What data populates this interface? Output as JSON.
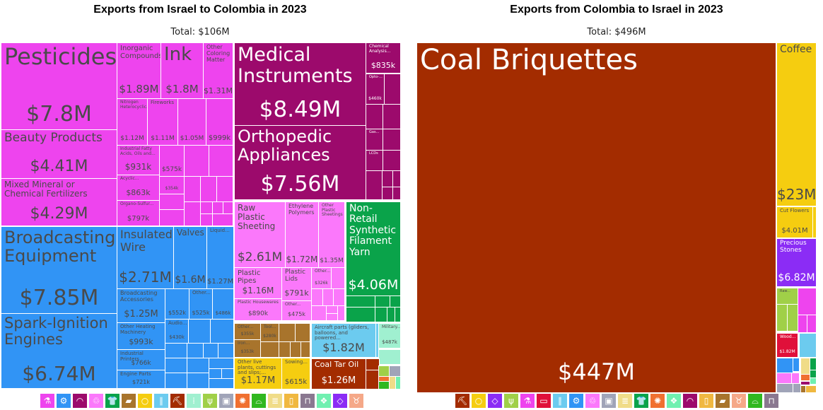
{
  "colors": {
    "chemicals": "#ee44ee",
    "machinery": "#3194f5",
    "instruments": "#9c0a6c",
    "plastics": "#fb78fb",
    "textiles": "#0aa34a",
    "metals": "#a8742c",
    "vegetable": "#f5cd10",
    "transport": "#6ccbef",
    "mineral": "#a32c00",
    "arms": "#a0f0d0",
    "vegprods": "#a0d048",
    "stone": "#a0a4b8",
    "stoneorange": "#f07030",
    "footwear": "#30b820",
    "paper": "#f0dc88",
    "foodstuffs": "#f0b840",
    "misc": "#8a7890",
    "hides": "#70f0b0",
    "precious": "#8b2cf5",
    "animal": "#f5a888",
    "wood": "#e0103a"
  },
  "chart_data": [
    {
      "type": "treemap",
      "title": "Exports from Israel to Colombia in 2023",
      "subtitle": "Total: $106M",
      "tiles": [
        {
          "name": "Pesticides",
          "value": "$7.8M",
          "cat": "chemicals"
        },
        {
          "name": "Beauty Products",
          "value": "$4.41M",
          "cat": "chemicals"
        },
        {
          "name": "Mixed Mineral or Chemical Fertilizers",
          "value": "$4.29M",
          "cat": "chemicals"
        },
        {
          "name": "Inorganic Compounds",
          "value": "$1.89M",
          "cat": "chemicals"
        },
        {
          "name": "Ink",
          "value": "$1.8M",
          "cat": "chemicals"
        },
        {
          "name": "Other Coloring Matter",
          "value": "$1.31M",
          "cat": "chemicals"
        },
        {
          "name": "Nitrogen Heterocyclic...",
          "value": "$1.12M",
          "cat": "chemicals"
        },
        {
          "name": "Fireworks",
          "value": "$1.11M",
          "cat": "chemicals"
        },
        {
          "name": "",
          "value": "$1.05M",
          "cat": "chemicals"
        },
        {
          "name": "",
          "value": "$999k",
          "cat": "chemicals"
        },
        {
          "name": "Industrial Fatty Acids, Oils and...",
          "value": "$931k",
          "cat": "chemicals"
        },
        {
          "name": "",
          "value": "$575k",
          "cat": "chemicals"
        },
        {
          "name": "Acyclic...",
          "value": "$863k",
          "cat": "chemicals"
        },
        {
          "name": "",
          "value": "$354k",
          "cat": "chemicals"
        },
        {
          "name": "Organo-Sulfur...",
          "value": "$797k",
          "cat": "chemicals"
        },
        {
          "name": "Broadcasting Equipment",
          "value": "$7.85M",
          "cat": "machinery"
        },
        {
          "name": "Spark-Ignition Engines",
          "value": "$6.74M",
          "cat": "machinery"
        },
        {
          "name": "Insulated Wire",
          "value": "$2.71M",
          "cat": "machinery"
        },
        {
          "name": "Valves",
          "value": "$1.6M",
          "cat": "machinery"
        },
        {
          "name": "Liquid...",
          "value": "$1.27M",
          "cat": "machinery"
        },
        {
          "name": "Broadcasting Accessories",
          "value": "$1.25M",
          "cat": "machinery"
        },
        {
          "name": "",
          "value": "$552k",
          "cat": "machinery"
        },
        {
          "name": "Other...",
          "value": "$525k",
          "cat": "machinery"
        },
        {
          "name": "",
          "value": "$486k",
          "cat": "machinery"
        },
        {
          "name": "Other Heating Machinery",
          "value": "$993k",
          "cat": "machinery"
        },
        {
          "name": "Audio...",
          "value": "$430k",
          "cat": "machinery"
        },
        {
          "name": "Industrial Printers",
          "value": "$766k",
          "cat": "machinery"
        },
        {
          "name": "Engine Parts",
          "value": "$721k",
          "cat": "machinery"
        },
        {
          "name": "Medical Instruments",
          "value": "$8.49M",
          "cat": "instruments"
        },
        {
          "name": "Orthopedic Appliances",
          "value": "$7.56M",
          "cat": "instruments"
        },
        {
          "name": "Chemical Analysis...",
          "value": "$835k",
          "cat": "instruments"
        },
        {
          "name": "Opto-...",
          "value": "$460k",
          "cat": "instruments"
        },
        {
          "name": "Gas...",
          "value": "",
          "cat": "instruments"
        },
        {
          "name": "LCDs",
          "value": "",
          "cat": "instruments"
        },
        {
          "name": "Raw Plastic Sheeting",
          "value": "$2.61M",
          "cat": "plastics"
        },
        {
          "name": "Ethylene Polymers",
          "value": "$1.72M",
          "cat": "plastics"
        },
        {
          "name": "Other Plastic Sheetings",
          "value": "$1.35M",
          "cat": "plastics"
        },
        {
          "name": "Plastic Pipes",
          "value": "$1.16M",
          "cat": "plastics"
        },
        {
          "name": "Plastic Lids",
          "value": "$791k",
          "cat": "plastics"
        },
        {
          "name": "Other...",
          "value": "$326k",
          "cat": "plastics"
        },
        {
          "name": "Plastic Housewares",
          "value": "$890k",
          "cat": "plastics"
        },
        {
          "name": "Other...",
          "value": "$475k",
          "cat": "plastics"
        },
        {
          "name": "Non-Retail Synthetic Filament Yarn",
          "value": "$4.06M",
          "cat": "textiles"
        },
        {
          "name": "Other...",
          "value": "$355k",
          "cat": "metals"
        },
        {
          "name": "Iron...",
          "value": "$353k",
          "cat": "metals"
        },
        {
          "name": "Tool...",
          "value": "$280k",
          "cat": "metals"
        },
        {
          "name": "Aircraft parts (gliders, balloons, and powered...",
          "value": "$1.82M",
          "cat": "transport"
        },
        {
          "name": "Military...",
          "value": "$487k",
          "cat": "arms"
        },
        {
          "name": "Other live plants, cuttings and slips;...",
          "value": "$1.17M",
          "cat": "vegetable"
        },
        {
          "name": "Sowing...",
          "value": "$615k",
          "cat": "vegetable"
        },
        {
          "name": "Coal Tar Oil",
          "value": "$1.26M",
          "cat": "mineral"
        }
      ],
      "legend": [
        {
          "icon": "flask-icon",
          "cat": "chemicals"
        },
        {
          "icon": "gear-icon",
          "cat": "machinery"
        },
        {
          "icon": "gauge-icon",
          "cat": "instruments"
        },
        {
          "icon": "recycle-icon",
          "cat": "plastics"
        },
        {
          "icon": "shirt-icon",
          "cat": "textiles"
        },
        {
          "icon": "anvil-icon",
          "cat": "metals"
        },
        {
          "icon": "fruit-icon",
          "cat": "vegetable"
        },
        {
          "icon": "road-icon",
          "cat": "transport"
        },
        {
          "icon": "pickaxe-icon",
          "cat": "mineral"
        },
        {
          "icon": "ammo-icon",
          "cat": "arms"
        },
        {
          "icon": "wheat-icon",
          "cat": "vegprods"
        },
        {
          "icon": "box-icon",
          "cat": "stone"
        },
        {
          "icon": "rock-icon",
          "cat": "stoneorange"
        },
        {
          "icon": "shoe-icon",
          "cat": "footwear"
        },
        {
          "icon": "scroll-icon",
          "cat": "paper"
        },
        {
          "icon": "bottle-icon",
          "cat": "foodstuffs"
        },
        {
          "icon": "easel-icon",
          "cat": "misc"
        },
        {
          "icon": "hide-icon",
          "cat": "hides"
        },
        {
          "icon": "diamond-icon",
          "cat": "precious"
        },
        {
          "icon": "cow-icon",
          "cat": "animal"
        }
      ]
    },
    {
      "type": "treemap",
      "title": "Exports from Colombia to Israel in 2023",
      "subtitle": "Total: $496M",
      "tiles": [
        {
          "name": "Coal Briquettes",
          "value": "$447M",
          "cat": "mineral"
        },
        {
          "name": "Coffee",
          "value": "$23M",
          "cat": "vegetable"
        },
        {
          "name": "Cut Flowers",
          "value": "$4.01M",
          "cat": "vegetable"
        },
        {
          "name": "Precious Stones",
          "value": "$6.82M",
          "cat": "precious"
        },
        {
          "name": "Raw...",
          "value": "",
          "cat": "vegprods"
        },
        {
          "name": "Wood...",
          "value": "$1.82M",
          "cat": "wood"
        }
      ],
      "legend": [
        {
          "icon": "pickaxe-icon",
          "cat": "mineral"
        },
        {
          "icon": "fruit-icon",
          "cat": "vegetable"
        },
        {
          "icon": "diamond-icon",
          "cat": "precious"
        },
        {
          "icon": "wheat-icon",
          "cat": "vegprods"
        },
        {
          "icon": "flask-icon",
          "cat": "chemicals"
        },
        {
          "icon": "ticket-icon",
          "cat": "wood"
        },
        {
          "icon": "road-icon",
          "cat": "transport"
        },
        {
          "icon": "gear-icon",
          "cat": "machinery"
        },
        {
          "icon": "recycle-icon",
          "cat": "plastics"
        },
        {
          "icon": "box-icon",
          "cat": "stone"
        },
        {
          "icon": "scroll-icon",
          "cat": "paper"
        },
        {
          "icon": "shirt-icon",
          "cat": "textiles"
        },
        {
          "icon": "rock-icon",
          "cat": "stoneorange"
        },
        {
          "icon": "hide-icon",
          "cat": "hides"
        },
        {
          "icon": "gauge-icon",
          "cat": "instruments"
        },
        {
          "icon": "bottle-icon",
          "cat": "foodstuffs"
        },
        {
          "icon": "anvil-icon",
          "cat": "metals"
        },
        {
          "icon": "cow-icon",
          "cat": "animal"
        },
        {
          "icon": "shoe-icon",
          "cat": "footwear"
        },
        {
          "icon": "easel-icon",
          "cat": "misc"
        }
      ]
    }
  ]
}
